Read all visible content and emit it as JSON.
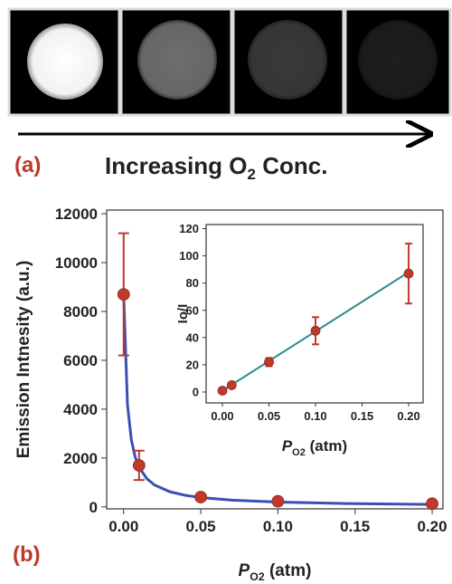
{
  "panel_a": {
    "label": "(a)",
    "caption": {
      "text": "Increasing O",
      "subscript": "2",
      "rest": " Conc."
    }
  },
  "panel_b": {
    "label": "(b)"
  },
  "chart_data": [
    {
      "type": "scatter",
      "y_label": "Emission Intnesity (a.u.)",
      "x_label": {
        "symbol": "P",
        "subscript": "O2",
        "unit": " (atm)"
      },
      "x": [
        0,
        0.01,
        0.05,
        0.1,
        0.2
      ],
      "values": [
        8700,
        1700,
        400,
        230,
        130
      ],
      "errors": [
        2500,
        600,
        100,
        60,
        60
      ],
      "marker_color": "#c0392b",
      "fit": {
        "color": "#3a4fb5",
        "x": [
          0,
          0.0025,
          0.005,
          0.0075,
          0.01,
          0.015,
          0.02,
          0.03,
          0.04,
          0.05,
          0.07,
          0.1,
          0.15,
          0.2
        ],
        "values": [
          8700,
          4168,
          2740,
          2041,
          1626,
          1156,
          897,
          619,
          473,
          382,
          277,
          196,
          131,
          99
        ]
      },
      "xlim": [
        -0.011,
        0.207
      ],
      "ylim": [
        -80,
        12150
      ],
      "xticks": [
        {
          "value": 0,
          "label": "0.00"
        },
        {
          "value": 0.05,
          "label": "0.05"
        },
        {
          "value": 0.1,
          "label": "0.10"
        },
        {
          "value": 0.15,
          "label": "0.15"
        },
        {
          "value": 0.2,
          "label": "0.20"
        }
      ],
      "yticks": [
        0,
        2000,
        4000,
        6000,
        8000,
        10000,
        12000
      ]
    },
    {
      "type": "scatter",
      "y_label": "Io/I",
      "x_label": {
        "symbol": "P",
        "subscript": "O2",
        "unit": " (atm)"
      },
      "x": [
        0,
        0.01,
        0.05,
        0.1,
        0.2
      ],
      "values": [
        1,
        5,
        22,
        45,
        87
      ],
      "errors": [
        0.5,
        1,
        3,
        10,
        22
      ],
      "marker_color": "#c0392b",
      "fit": {
        "color": "#2e8b8b",
        "x": [
          0,
          0.2
        ],
        "values": [
          1,
          88
        ]
      },
      "xlim": [
        -0.0175,
        0.2155
      ],
      "ylim": [
        -8,
        123
      ],
      "xticks": [
        {
          "value": 0,
          "label": "0.00"
        },
        {
          "value": 0.05,
          "label": "0.05"
        },
        {
          "value": 0.1,
          "label": "0.10"
        },
        {
          "value": 0.15,
          "label": "0.15"
        },
        {
          "value": 0.2,
          "label": "0.20"
        }
      ],
      "yticks": [
        0,
        20,
        40,
        60,
        80,
        100,
        120
      ]
    }
  ]
}
